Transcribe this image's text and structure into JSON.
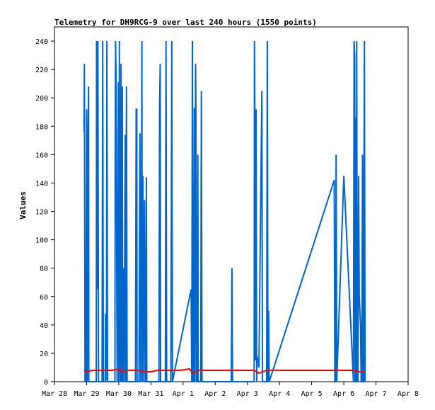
{
  "chart_data": {
    "type": "line",
    "title": "Telemetry for DH9RCG-9 over last 240 hours (1550 points)",
    "xlabel": "",
    "ylabel": "Values",
    "x_ticks": [
      "Mar 28",
      "Mar 29",
      "Mar 30",
      "Mar 31",
      "Apr 1",
      "Apr 2",
      "Apr 3",
      "Apr 4",
      "Apr 5",
      "Apr 6",
      "Apr 7",
      "Apr 8"
    ],
    "xlim": [
      0,
      11
    ],
    "ylim": [
      0,
      250
    ],
    "y_ticks": [
      0,
      20,
      40,
      60,
      80,
      100,
      120,
      140,
      160,
      180,
      200,
      220,
      240
    ],
    "grid": false,
    "colors": {
      "series1": "#0066cc",
      "series2": "#ff0000"
    },
    "series": [
      {
        "color": "#0066cc",
        "points": [
          [
            0.92,
            176
          ],
          [
            0.93,
            224
          ],
          [
            0.95,
            0
          ],
          [
            0.98,
            0
          ],
          [
            1.0,
            192
          ],
          [
            1.02,
            0
          ],
          [
            1.03,
            130
          ],
          [
            1.05,
            182
          ],
          [
            1.06,
            208
          ],
          [
            1.07,
            0
          ],
          [
            1.09,
            0
          ],
          [
            1.3,
            0
          ],
          [
            1.31,
            240
          ],
          [
            1.33,
            65
          ],
          [
            1.35,
            240
          ],
          [
            1.37,
            0
          ],
          [
            1.48,
            0
          ],
          [
            1.5,
            240
          ],
          [
            1.52,
            0
          ],
          [
            1.58,
            0
          ],
          [
            1.59,
            48
          ],
          [
            1.6,
            0
          ],
          [
            1.62,
            40
          ],
          [
            1.63,
            240
          ],
          [
            1.65,
            0
          ],
          [
            1.88,
            0
          ],
          [
            1.89,
            160
          ],
          [
            1.9,
            240
          ],
          [
            1.92,
            208
          ],
          [
            1.93,
            130
          ],
          [
            1.95,
            0
          ],
          [
            1.97,
            95
          ],
          [
            1.99,
            211
          ],
          [
            2.0,
            0
          ],
          [
            2.02,
            240
          ],
          [
            2.03,
            60
          ],
          [
            2.05,
            0
          ],
          [
            2.07,
            224
          ],
          [
            2.09,
            0
          ],
          [
            2.11,
            208
          ],
          [
            2.12,
            0
          ],
          [
            2.15,
            80
          ],
          [
            2.17,
            0
          ],
          [
            2.2,
            174
          ],
          [
            2.22,
            0
          ],
          [
            2.24,
            208
          ],
          [
            2.26,
            0
          ],
          [
            2.52,
            0
          ],
          [
            2.54,
            192
          ],
          [
            2.56,
            192
          ],
          [
            2.57,
            0
          ],
          [
            2.6,
            0
          ],
          [
            2.63,
            0
          ],
          [
            2.65,
            128
          ],
          [
            2.66,
            175
          ],
          [
            2.68,
            0
          ],
          [
            2.69,
            138
          ],
          [
            2.7,
            40
          ],
          [
            2.72,
            240
          ],
          [
            2.73,
            0
          ],
          [
            2.75,
            145
          ],
          [
            2.76,
            0
          ],
          [
            2.78,
            60
          ],
          [
            2.8,
            128
          ],
          [
            2.82,
            0
          ],
          [
            2.84,
            0
          ],
          [
            2.86,
            144
          ],
          [
            2.87,
            0
          ],
          [
            3.25,
            0
          ],
          [
            3.27,
            192
          ],
          [
            3.29,
            224
          ],
          [
            3.3,
            0
          ],
          [
            3.45,
            0
          ],
          [
            3.47,
            240
          ],
          [
            3.49,
            0
          ],
          [
            3.6,
            0
          ],
          [
            3.62,
            0
          ],
          [
            3.65,
            240
          ],
          [
            3.67,
            0
          ],
          [
            4.25,
            65
          ],
          [
            4.27,
            0
          ],
          [
            4.29,
            240
          ],
          [
            4.31,
            0
          ],
          [
            4.33,
            0
          ],
          [
            4.35,
            193
          ],
          [
            4.37,
            0
          ],
          [
            4.39,
            224
          ],
          [
            4.4,
            190
          ],
          [
            4.42,
            0
          ],
          [
            4.44,
            0
          ],
          [
            4.46,
            160
          ],
          [
            4.47,
            0
          ],
          [
            4.55,
            0
          ],
          [
            4.57,
            205
          ],
          [
            4.59,
            0
          ],
          [
            5.5,
            0
          ],
          [
            5.52,
            80
          ],
          [
            5.54,
            0
          ],
          [
            6.21,
            0
          ],
          [
            6.22,
            240
          ],
          [
            6.24,
            160
          ],
          [
            6.25,
            15
          ],
          [
            6.27,
            192
          ],
          [
            6.29,
            0
          ],
          [
            6.3,
            18
          ],
          [
            6.33,
            15
          ],
          [
            6.36,
            10
          ],
          [
            6.45,
            205
          ],
          [
            6.47,
            0
          ],
          [
            6.57,
            0
          ],
          [
            6.6,
            0
          ],
          [
            6.62,
            240
          ],
          [
            6.64,
            0
          ],
          [
            6.66,
            50
          ],
          [
            6.68,
            0
          ],
          [
            8.7,
            142
          ],
          [
            8.72,
            0
          ],
          [
            8.74,
            0
          ],
          [
            8.76,
            160
          ],
          [
            8.78,
            0
          ],
          [
            9.0,
            145
          ],
          [
            9.3,
            0
          ],
          [
            9.32,
            240
          ],
          [
            9.34,
            230
          ],
          [
            9.35,
            0
          ],
          [
            9.36,
            186
          ],
          [
            9.38,
            0
          ],
          [
            9.4,
            240
          ],
          [
            9.42,
            0
          ],
          [
            9.44,
            0
          ],
          [
            9.46,
            145
          ],
          [
            9.48,
            60
          ],
          [
            9.52,
            40
          ],
          [
            9.54,
            0
          ],
          [
            9.56,
            0
          ],
          [
            9.58,
            160
          ],
          [
            9.6,
            0
          ],
          [
            9.62,
            0
          ],
          [
            9.63,
            160
          ],
          [
            9.64,
            240
          ],
          [
            9.66,
            0
          ]
        ]
      },
      {
        "color": "#ff0000",
        "points": [
          [
            0.92,
            8
          ],
          [
            1.0,
            7
          ],
          [
            1.2,
            8
          ],
          [
            1.5,
            8
          ],
          [
            1.8,
            8
          ],
          [
            2.0,
            9
          ],
          [
            2.1,
            7
          ],
          [
            2.3,
            8
          ],
          [
            2.6,
            8
          ],
          [
            2.8,
            7
          ],
          [
            3.0,
            7
          ],
          [
            3.2,
            8
          ],
          [
            3.6,
            8
          ],
          [
            3.9,
            8
          ],
          [
            4.2,
            9
          ],
          [
            4.3,
            6
          ],
          [
            4.5,
            8
          ],
          [
            4.8,
            8
          ],
          [
            5.2,
            8
          ],
          [
            5.5,
            8
          ],
          [
            5.8,
            8
          ],
          [
            6.2,
            8
          ],
          [
            6.3,
            7
          ],
          [
            6.35,
            6
          ],
          [
            6.6,
            8
          ],
          [
            7.0,
            8
          ],
          [
            7.5,
            8
          ],
          [
            8.0,
            8
          ],
          [
            8.5,
            8
          ],
          [
            8.9,
            8
          ],
          [
            9.1,
            8
          ],
          [
            9.3,
            8
          ],
          [
            9.45,
            7
          ],
          [
            9.66,
            7
          ]
        ]
      }
    ]
  }
}
